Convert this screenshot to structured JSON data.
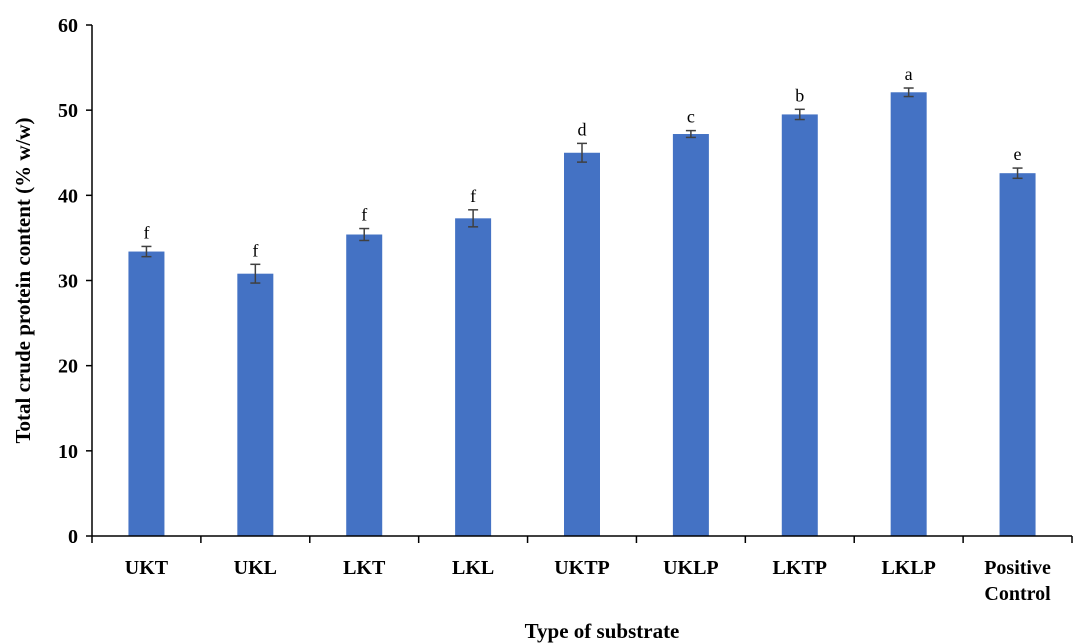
{
  "chart_data": {
    "type": "bar",
    "title": "",
    "xlabel": "Type of substrate",
    "ylabel": "Total crude protein content (% w/w)",
    "ylim": [
      0,
      60
    ],
    "yticks": [
      0,
      10,
      20,
      30,
      40,
      50,
      60
    ],
    "grid": false,
    "legend": "none",
    "bar_color": "#4472C4",
    "categories": [
      [
        "UKT"
      ],
      [
        "UKL"
      ],
      [
        "LKT"
      ],
      [
        "LKL"
      ],
      [
        "UKTP"
      ],
      [
        "UKLP"
      ],
      [
        "LKTP"
      ],
      [
        "LKLP"
      ],
      [
        "Positive",
        "Control"
      ]
    ],
    "values": [
      33.4,
      30.8,
      35.4,
      37.3,
      45.0,
      47.2,
      49.5,
      52.1,
      42.6
    ],
    "errors": [
      0.6,
      1.1,
      0.7,
      1.0,
      1.1,
      0.4,
      0.6,
      0.5,
      0.6
    ],
    "significance_labels": [
      "f",
      "f",
      "f",
      "f",
      "d",
      "c",
      "b",
      "a",
      "e"
    ]
  }
}
